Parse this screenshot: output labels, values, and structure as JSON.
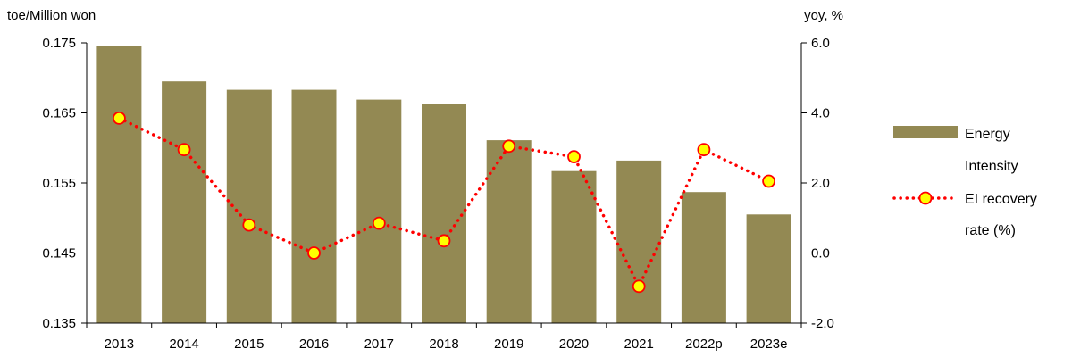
{
  "chart_data": {
    "type": "bar",
    "title": "",
    "categories": [
      "2013",
      "2014",
      "2015",
      "2016",
      "2017",
      "2018",
      "2019",
      "2020",
      "2021",
      "2022p",
      "2023e"
    ],
    "y_left": {
      "unit_label": "toe/Million won",
      "lim": [
        0.135,
        0.175
      ],
      "ticks": [
        "0.135",
        "0.145",
        "0.155",
        "0.165",
        "0.175"
      ]
    },
    "y_right": {
      "unit_label": "yoy, %",
      "lim": [
        -2.0,
        6.0
      ],
      "ticks": [
        "-2.0",
        "0.0",
        "2.0",
        "4.0",
        "6.0"
      ]
    },
    "series": [
      {
        "name_lines": [
          "Energy",
          "Intensity"
        ],
        "kind": "bar",
        "axis": "left",
        "color": "#938953",
        "values": [
          0.1745,
          0.1695,
          0.1683,
          0.1683,
          0.1669,
          0.1663,
          0.1611,
          0.1567,
          0.1582,
          0.1537,
          0.1505
        ]
      },
      {
        "name_lines": [
          "EI recovery",
          "rate (%)"
        ],
        "kind": "line",
        "axis": "right",
        "line_style": "dotted",
        "line_color": "#ff0000",
        "marker_fill": "#ffff00",
        "marker_edge": "#ff0000",
        "values": [
          3.85,
          2.95,
          0.8,
          0.0,
          0.85,
          0.35,
          3.05,
          2.75,
          -0.95,
          2.95,
          2.05
        ]
      }
    ],
    "grid": false,
    "legend_position": "right"
  }
}
